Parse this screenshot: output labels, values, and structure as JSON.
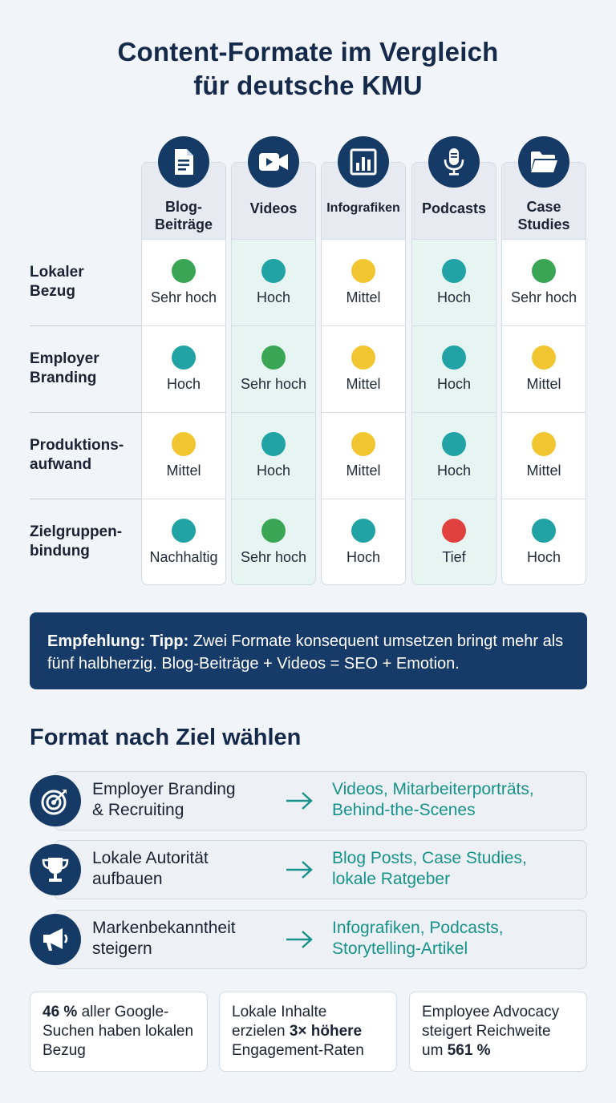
{
  "title": {
    "line1": "Content-Formate im Vergleich",
    "line2": "für deutsche KMU"
  },
  "colors": {
    "sehr_hoch": "#3aa655",
    "hoch": "#21a3a6",
    "mittel": "#f2c631",
    "tief": "#e0413e",
    "navy": "#163a66",
    "teal_text": "#17928a"
  },
  "formats": [
    {
      "label": "Blog-\nBeiträge",
      "icon": "document-icon"
    },
    {
      "label": "Videos",
      "icon": "video-camera-icon"
    },
    {
      "label": "Infografiken",
      "icon": "bar-chart-icon"
    },
    {
      "label": "Podcasts",
      "icon": "microphone-icon"
    },
    {
      "label": "Case\nStudies",
      "icon": "folder-icon"
    }
  ],
  "criteria": [
    {
      "label": "Lokaler\nBezug"
    },
    {
      "label": "Employer\nBranding"
    },
    {
      "label": "Produktions-\naufwand"
    },
    {
      "label": "Zielgruppen-\nbindung"
    }
  ],
  "matrix": [
    [
      {
        "text": "Sehr hoch",
        "level": "sehr_hoch"
      },
      {
        "text": "Hoch",
        "level": "hoch"
      },
      {
        "text": "Mittel",
        "level": "mittel"
      },
      {
        "text": "Hoch",
        "level": "hoch"
      },
      {
        "text": "Sehr hoch",
        "level": "sehr_hoch"
      }
    ],
    [
      {
        "text": "Hoch",
        "level": "hoch"
      },
      {
        "text": "Sehr hoch",
        "level": "sehr_hoch"
      },
      {
        "text": "Mittel",
        "level": "mittel"
      },
      {
        "text": "Hoch",
        "level": "hoch"
      },
      {
        "text": "Mittel",
        "level": "mittel"
      }
    ],
    [
      {
        "text": "Mittel",
        "level": "mittel"
      },
      {
        "text": "Hoch",
        "level": "hoch"
      },
      {
        "text": "Mittel",
        "level": "mittel"
      },
      {
        "text": "Hoch",
        "level": "hoch"
      },
      {
        "text": "Mittel",
        "level": "mittel"
      }
    ],
    [
      {
        "text": "Nachhaltig",
        "level": "hoch"
      },
      {
        "text": "Sehr hoch",
        "level": "sehr_hoch"
      },
      {
        "text": "Hoch",
        "level": "hoch"
      },
      {
        "text": "Tief",
        "level": "tief"
      },
      {
        "text": "Hoch",
        "level": "hoch"
      }
    ]
  ],
  "recommendation": {
    "label": "Empfehlung: Tipp:",
    "text": " Zwei Formate konsequent umsetzen bringt mehr als fünf halbherzig. Blog-Beiträge + Videos = SEO + Emotion."
  },
  "goals_section": {
    "title": "Format nach Ziel wählen",
    "items": [
      {
        "goal": "Employer Branding\n& Recruiting",
        "formats": "Videos, Mitarbeiterporträts,\nBehind-the-Scenes",
        "icon": "target-icon"
      },
      {
        "goal": "Lokale Autorität\naufbauen",
        "formats": "Blog Posts, Case Studies,\nlokale Ratgeber",
        "icon": "trophy-icon"
      },
      {
        "goal": "Markenbekanntheit\nsteigern",
        "formats": "Infografiken, Podcasts,\nStorytelling-Artikel",
        "icon": "megaphone-icon"
      }
    ]
  },
  "stats": [
    {
      "pre": "",
      "bold": "46 %",
      "post": " aller Google-Suchen haben lokalen Bezug"
    },
    {
      "pre": "Lokale Inhalte erzielen ",
      "bold": "3× höhere",
      "post": " Engagement-Raten"
    },
    {
      "pre": "Employee Advocacy steigert Reichweite um ",
      "bold": "561 %",
      "post": ""
    }
  ]
}
